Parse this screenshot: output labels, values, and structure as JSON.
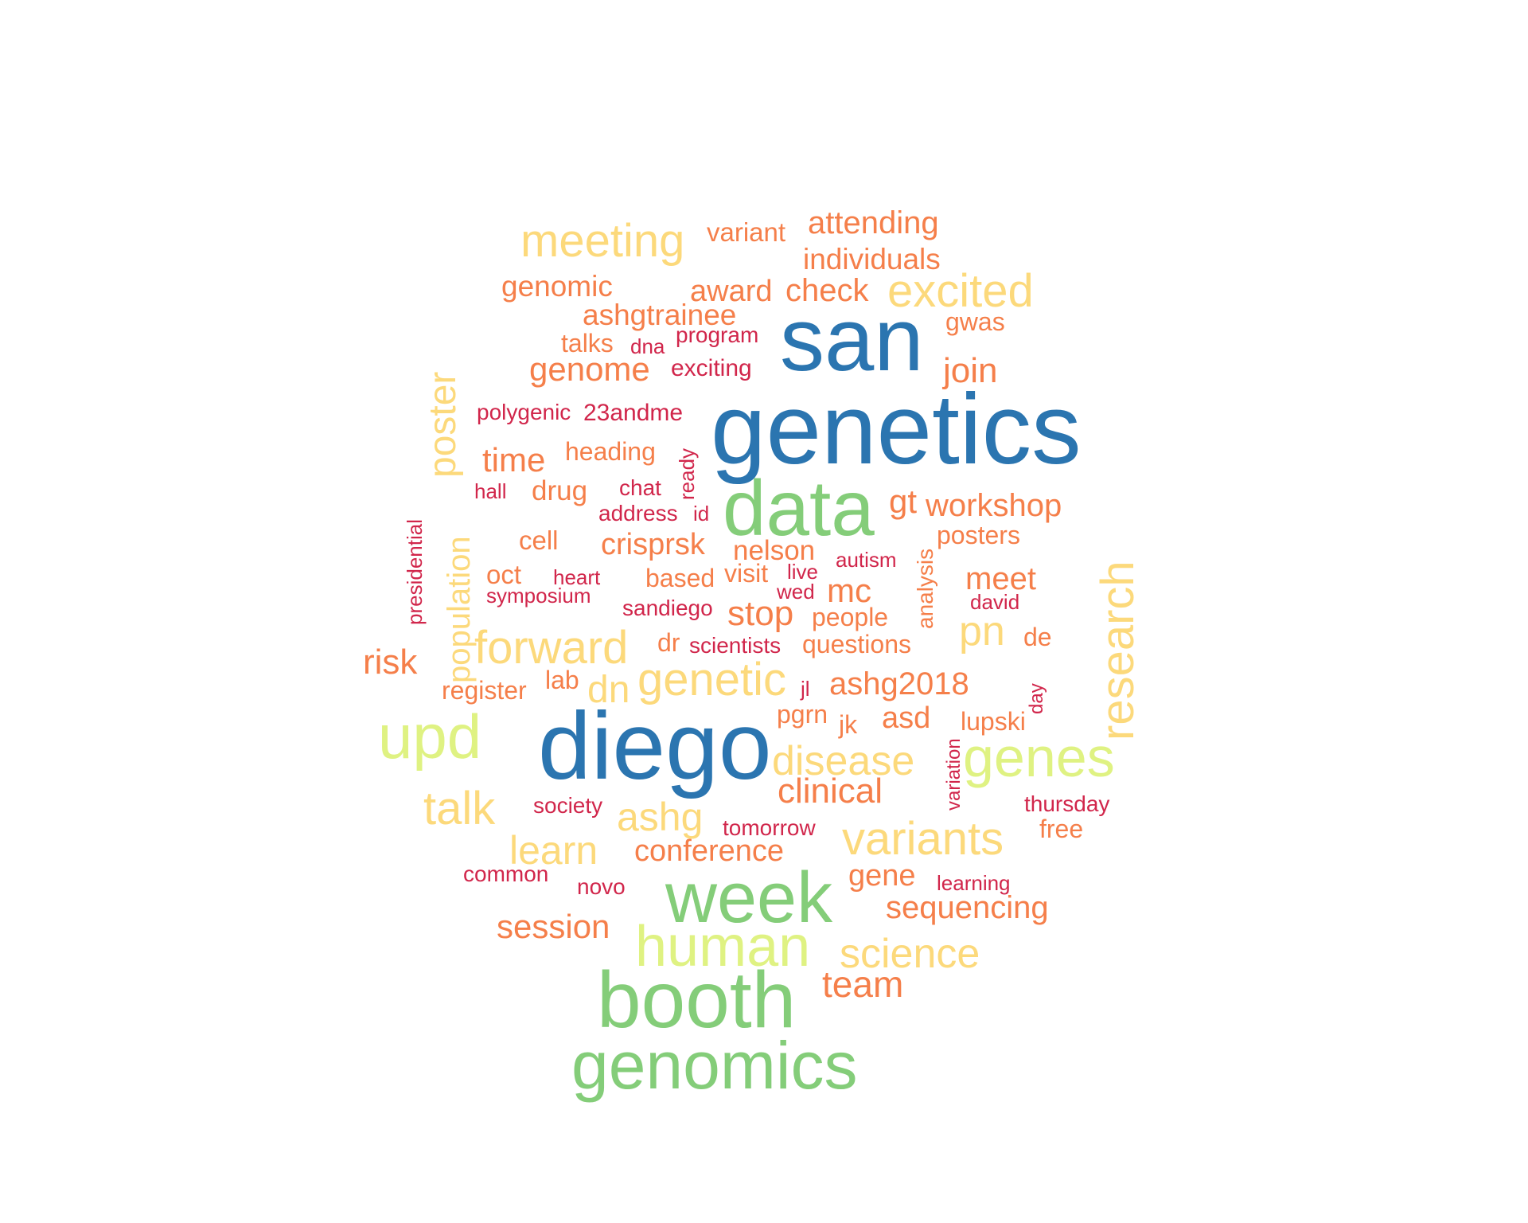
{
  "palette": {
    "blue": "#2b75b0",
    "green": "#84cd79",
    "lime": "#dff282",
    "yellow": "#fcd97b",
    "orange": "#f57f4a",
    "red": "#d1264b"
  },
  "words": [
    {
      "text": "genetics",
      "color": "blue"
    },
    {
      "text": "san",
      "color": "blue"
    },
    {
      "text": "diego",
      "color": "blue"
    },
    {
      "text": "data",
      "color": "green"
    },
    {
      "text": "week",
      "color": "green"
    },
    {
      "text": "booth",
      "color": "green"
    },
    {
      "text": "genomics",
      "color": "green"
    },
    {
      "text": "human",
      "color": "lime"
    },
    {
      "text": "upd",
      "color": "lime"
    },
    {
      "text": "genes",
      "color": "lime"
    },
    {
      "text": "meeting",
      "color": "yellow"
    },
    {
      "text": "excited",
      "color": "yellow"
    },
    {
      "text": "forward",
      "color": "yellow"
    },
    {
      "text": "genetic",
      "color": "yellow"
    },
    {
      "text": "research",
      "color": "yellow"
    },
    {
      "text": "variants",
      "color": "yellow"
    },
    {
      "text": "talk",
      "color": "yellow"
    },
    {
      "text": "poster",
      "color": "yellow"
    },
    {
      "text": "disease",
      "color": "yellow"
    },
    {
      "text": "science",
      "color": "yellow"
    },
    {
      "text": "ashg",
      "color": "yellow"
    },
    {
      "text": "learn",
      "color": "yellow"
    },
    {
      "text": "pn",
      "color": "yellow"
    },
    {
      "text": "dn",
      "color": "yellow"
    },
    {
      "text": "population",
      "color": "yellow"
    },
    {
      "text": "attending",
      "color": "orange"
    },
    {
      "text": "individuals",
      "color": "orange"
    },
    {
      "text": "variant",
      "color": "orange"
    },
    {
      "text": "genomic",
      "color": "orange"
    },
    {
      "text": "award",
      "color": "orange"
    },
    {
      "text": "check",
      "color": "orange"
    },
    {
      "text": "ashgtrainee",
      "color": "orange"
    },
    {
      "text": "gwas",
      "color": "orange"
    },
    {
      "text": "talks",
      "color": "orange"
    },
    {
      "text": "genome",
      "color": "orange"
    },
    {
      "text": "join",
      "color": "orange"
    },
    {
      "text": "time",
      "color": "orange"
    },
    {
      "text": "heading",
      "color": "orange"
    },
    {
      "text": "drug",
      "color": "orange"
    },
    {
      "text": "gt",
      "color": "orange"
    },
    {
      "text": "workshop",
      "color": "orange"
    },
    {
      "text": "cell",
      "color": "orange"
    },
    {
      "text": "crisprsk",
      "color": "orange"
    },
    {
      "text": "nelson",
      "color": "orange"
    },
    {
      "text": "posters",
      "color": "orange"
    },
    {
      "text": "oct",
      "color": "orange"
    },
    {
      "text": "based",
      "color": "orange"
    },
    {
      "text": "visit",
      "color": "orange"
    },
    {
      "text": "meet",
      "color": "orange"
    },
    {
      "text": "mc",
      "color": "orange"
    },
    {
      "text": "stop",
      "color": "orange"
    },
    {
      "text": "people",
      "color": "orange"
    },
    {
      "text": "risk",
      "color": "orange"
    },
    {
      "text": "dr",
      "color": "orange"
    },
    {
      "text": "questions",
      "color": "orange"
    },
    {
      "text": "de",
      "color": "orange"
    },
    {
      "text": "lab",
      "color": "orange"
    },
    {
      "text": "ashg2018",
      "color": "orange"
    },
    {
      "text": "register",
      "color": "orange"
    },
    {
      "text": "pgrn",
      "color": "orange"
    },
    {
      "text": "jk",
      "color": "orange"
    },
    {
      "text": "asd",
      "color": "orange"
    },
    {
      "text": "lupski",
      "color": "orange"
    },
    {
      "text": "clinical",
      "color": "orange"
    },
    {
      "text": "conference",
      "color": "orange"
    },
    {
      "text": "free",
      "color": "orange"
    },
    {
      "text": "gene",
      "color": "orange"
    },
    {
      "text": "sequencing",
      "color": "orange"
    },
    {
      "text": "session",
      "color": "orange"
    },
    {
      "text": "team",
      "color": "orange"
    },
    {
      "text": "analysis",
      "color": "orange"
    },
    {
      "text": "program",
      "color": "red"
    },
    {
      "text": "dna",
      "color": "red"
    },
    {
      "text": "exciting",
      "color": "red"
    },
    {
      "text": "polygenic",
      "color": "red"
    },
    {
      "text": "23andme",
      "color": "red"
    },
    {
      "text": "ready",
      "color": "red"
    },
    {
      "text": "hall",
      "color": "red"
    },
    {
      "text": "chat",
      "color": "red"
    },
    {
      "text": "address",
      "color": "red"
    },
    {
      "text": "id",
      "color": "red"
    },
    {
      "text": "presidential",
      "color": "red"
    },
    {
      "text": "heart",
      "color": "red"
    },
    {
      "text": "symposium",
      "color": "red"
    },
    {
      "text": "live",
      "color": "red"
    },
    {
      "text": "autism",
      "color": "red"
    },
    {
      "text": "wed",
      "color": "red"
    },
    {
      "text": "david",
      "color": "red"
    },
    {
      "text": "sandiego",
      "color": "red"
    },
    {
      "text": "scientists",
      "color": "red"
    },
    {
      "text": "jl",
      "color": "red"
    },
    {
      "text": "day",
      "color": "red"
    },
    {
      "text": "variation",
      "color": "red"
    },
    {
      "text": "society",
      "color": "red"
    },
    {
      "text": "tomorrow",
      "color": "red"
    },
    {
      "text": "thursday",
      "color": "red"
    },
    {
      "text": "common",
      "color": "red"
    },
    {
      "text": "novo",
      "color": "red"
    },
    {
      "text": "learning",
      "color": "red"
    }
  ]
}
